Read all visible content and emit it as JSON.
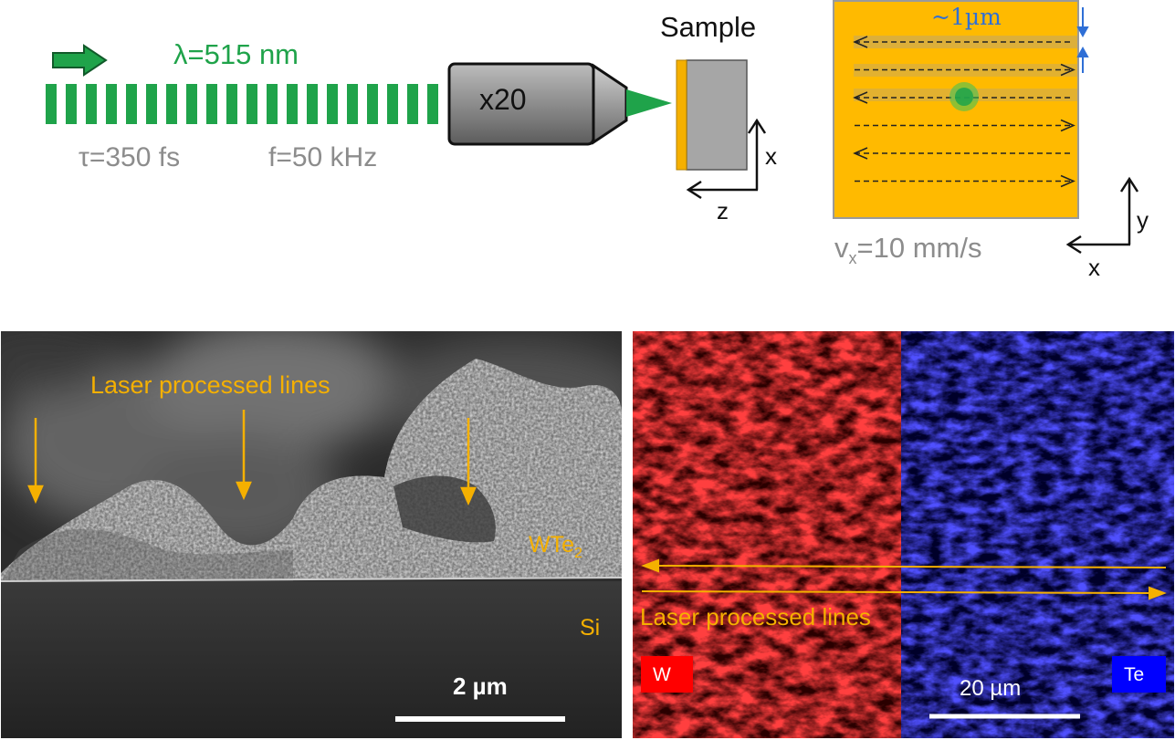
{
  "setup": {
    "wavelength": "λ=515 nm",
    "pulse_duration": "τ=350 fs",
    "frequency": "f=50 kHz",
    "objective": "x20",
    "sample_label": "Sample",
    "axis_x": "x",
    "axis_z": "z"
  },
  "scan": {
    "spacing": "~1µm",
    "velocity_prefix": "v",
    "velocity_sub": "x",
    "velocity_suffix": "=10 mm/s",
    "axis_y": "y",
    "axis_x": "x"
  },
  "sem": {
    "annotation": "Laser processed lines",
    "layer_main": "WTe",
    "layer_sub": "2",
    "substrate": "Si",
    "scale_bar": "2 µm"
  },
  "eds": {
    "annotation": "Laser processed lines",
    "element_left": "W",
    "element_right": "Te",
    "scale_bar": "20 µm"
  },
  "colors": {
    "beam": "#1fa34a",
    "film": "#f5b000",
    "w_map": "#ff1a1a",
    "te_map": "#1a1aff"
  }
}
